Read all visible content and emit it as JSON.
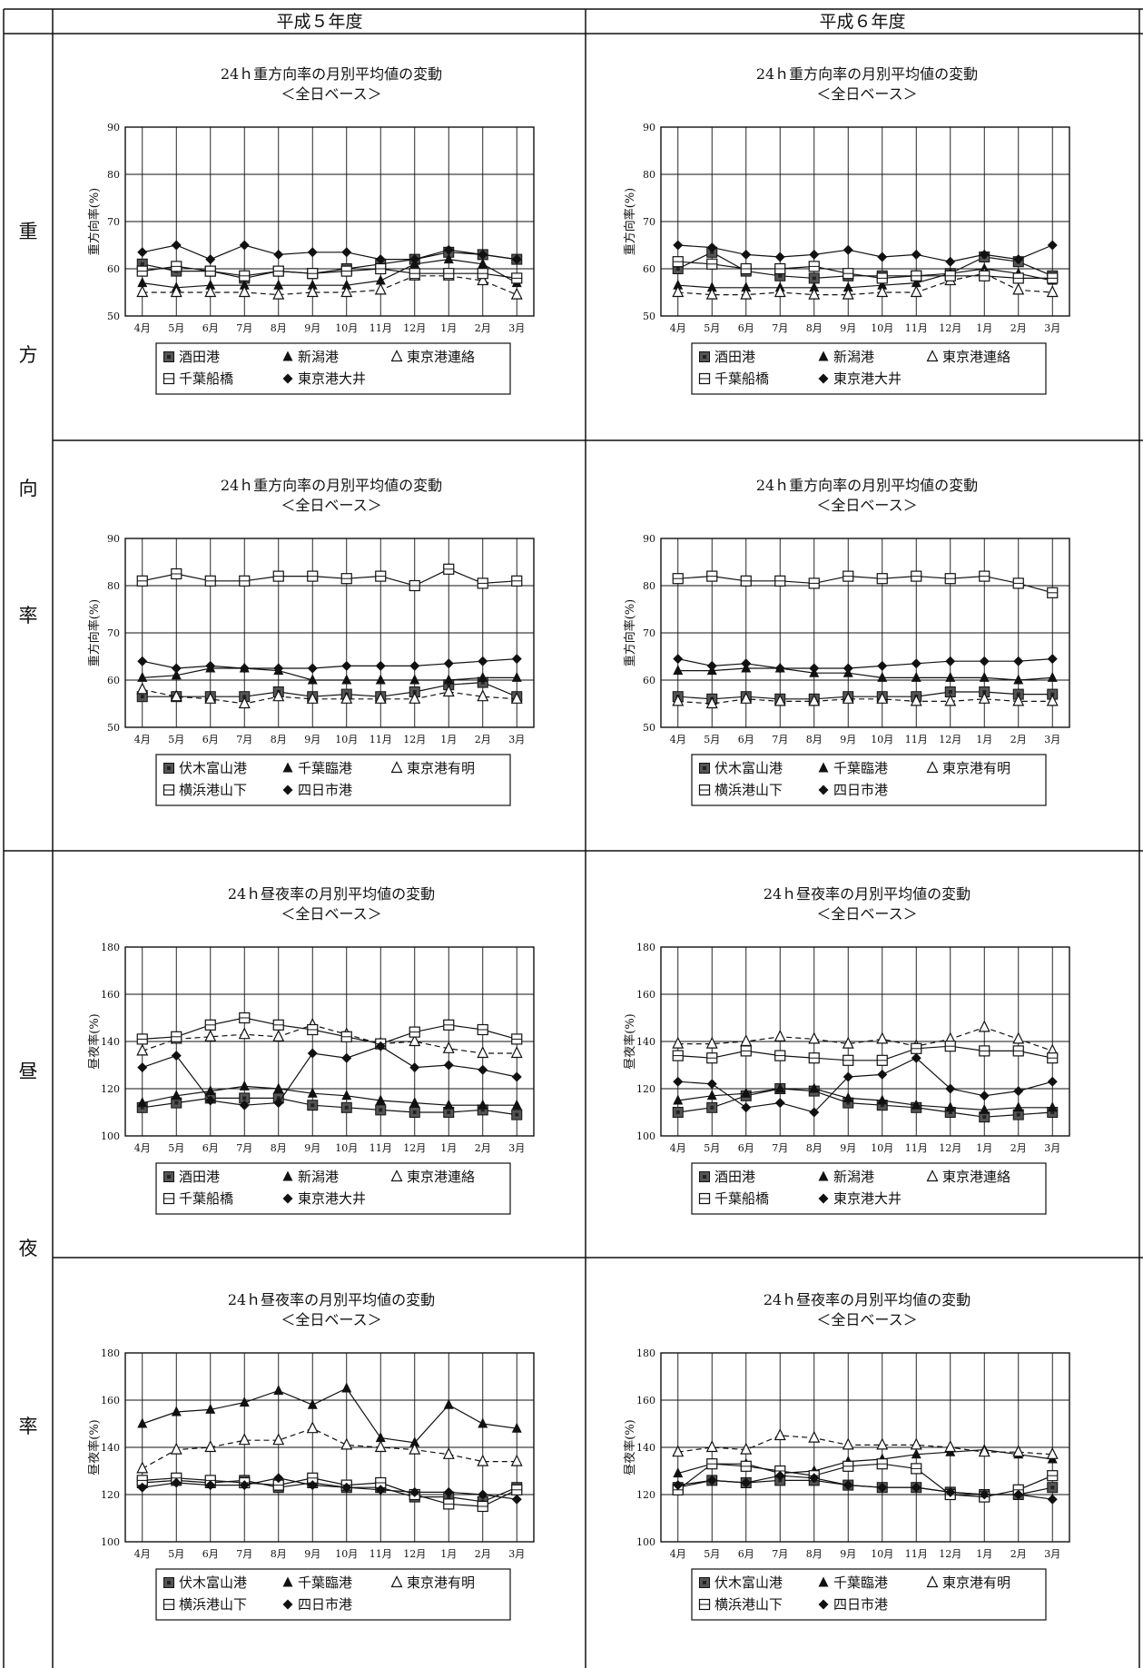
{
  "table": {
    "col_headers": [
      "平成５年度",
      "平成６年度"
    ],
    "row_groups": [
      {
        "label_chars": [
          "重",
          "方",
          "向",
          "率"
        ]
      },
      {
        "label_chars": [
          "昼",
          "夜",
          "率"
        ]
      }
    ]
  },
  "chart_data": [
    {
      "type": "line",
      "title": "24ｈ重方向率の月別平均値の変動",
      "subtitle": "＜全日ベース＞",
      "ylabel": "重方向率(%)",
      "ylim": [
        50,
        90
      ],
      "yticks": [
        50,
        60,
        70,
        80,
        90
      ],
      "grid": true,
      "legend_placement": "bottom",
      "categories": [
        "4月",
        "5月",
        "6月",
        "7月",
        "8月",
        "9月",
        "10月",
        "11月",
        "12月",
        "1月",
        "2月",
        "3月"
      ],
      "series": [
        {
          "name": "酒田港",
          "marker": "square-filled",
          "values": [
            61,
            59.5,
            59.5,
            58,
            59.5,
            59,
            60,
            61,
            62,
            63.5,
            63,
            62
          ]
        },
        {
          "name": "新潟港",
          "marker": "triangle-filled",
          "values": [
            57,
            56,
            56.5,
            56.5,
            56.5,
            56.5,
            56.5,
            57.5,
            61,
            62,
            61,
            57
          ]
        },
        {
          "name": "東京港連絡",
          "marker": "triangle-open",
          "values": [
            55,
            55,
            55,
            55,
            54.5,
            55,
            55,
            55.5,
            58.5,
            58.5,
            57.5,
            54.5
          ]
        },
        {
          "name": "千葉船橋",
          "marker": "square-open",
          "values": [
            59.5,
            60.5,
            59.5,
            58.5,
            59.5,
            59,
            59.5,
            60,
            59,
            59,
            59,
            58
          ]
        },
        {
          "name": "東京港大井",
          "marker": "diamond-filled",
          "values": [
            63.5,
            65,
            62,
            65,
            63,
            63.5,
            63.5,
            62,
            62,
            64,
            63,
            62
          ]
        }
      ]
    },
    {
      "type": "line",
      "title": "24ｈ重方向率の月別平均値の変動",
      "subtitle": "＜全日ベース＞",
      "ylabel": "重方向率(%)",
      "ylim": [
        50,
        90
      ],
      "yticks": [
        50,
        60,
        70,
        80,
        90
      ],
      "grid": true,
      "legend_placement": "bottom",
      "categories": [
        "4月",
        "5月",
        "6月",
        "7月",
        "8月",
        "9月",
        "10月",
        "11月",
        "12月",
        "1月",
        "2月",
        "3月"
      ],
      "series": [
        {
          "name": "酒田港",
          "marker": "square-filled",
          "values": [
            60,
            63.5,
            59.5,
            58.5,
            58,
            58.5,
            58.5,
            58.5,
            59,
            62.5,
            61.5,
            58.5
          ]
        },
        {
          "name": "新潟港",
          "marker": "triangle-filled",
          "values": [
            56.5,
            56,
            56,
            56,
            56,
            56,
            56.5,
            57,
            59,
            60,
            59,
            57.5
          ]
        },
        {
          "name": "東京港連絡",
          "marker": "triangle-open",
          "values": [
            55,
            54.5,
            54.5,
            55,
            54.5,
            54.5,
            55,
            55,
            57.5,
            59,
            55.5,
            55
          ]
        },
        {
          "name": "千葉船橋",
          "marker": "square-open",
          "values": [
            61.5,
            61,
            60,
            60,
            60.5,
            59,
            58,
            58.5,
            58.5,
            58.5,
            58,
            58
          ]
        },
        {
          "name": "東京港大井",
          "marker": "diamond-filled",
          "values": [
            65,
            64.5,
            63,
            62.5,
            63,
            64,
            62.5,
            63,
            61.5,
            63,
            62,
            65
          ]
        }
      ]
    },
    {
      "type": "line",
      "title": "24ｈ重方向率の月別平均値の変動",
      "subtitle": "＜全日ベース＞",
      "ylabel": "重方向率(%)",
      "ylim": [
        50,
        90
      ],
      "yticks": [
        50,
        60,
        70,
        80,
        90
      ],
      "grid": true,
      "legend_placement": "bottom",
      "categories": [
        "4月",
        "5月",
        "6月",
        "7月",
        "8月",
        "9月",
        "10月",
        "11月",
        "12月",
        "1月",
        "2月",
        "3月"
      ],
      "series": [
        {
          "name": "伏木富山港",
          "marker": "square-filled",
          "values": [
            56.5,
            56.5,
            56.5,
            56.5,
            57.5,
            56.5,
            57,
            56.5,
            57.5,
            59,
            59.5,
            56.5
          ]
        },
        {
          "name": "千葉臨港",
          "marker": "triangle-filled",
          "values": [
            60.5,
            61,
            62.5,
            62.5,
            62,
            60,
            60,
            60,
            60,
            60,
            60.5,
            60.5
          ]
        },
        {
          "name": "東京港有明",
          "marker": "triangle-open",
          "values": [
            58,
            56.5,
            56,
            55,
            56.5,
            56,
            56,
            56,
            56,
            57.5,
            56.5,
            56
          ]
        },
        {
          "name": "横浜港山下",
          "marker": "square-open",
          "values": [
            81,
            82.5,
            81,
            81,
            82,
            82,
            81.5,
            82,
            80,
            83.5,
            80.5,
            81
          ]
        },
        {
          "name": "四日市港",
          "marker": "diamond-filled",
          "values": [
            64,
            62.5,
            63,
            62.5,
            62.5,
            62.5,
            63,
            63,
            63,
            63.5,
            64,
            64.5
          ]
        }
      ]
    },
    {
      "type": "line",
      "title": "24ｈ重方向率の月別平均値の変動",
      "subtitle": "＜全日ベース＞",
      "ylabel": "重方向率(%)",
      "ylim": [
        50,
        90
      ],
      "yticks": [
        50,
        60,
        70,
        80,
        90
      ],
      "grid": true,
      "legend_placement": "bottom",
      "categories": [
        "4月",
        "5月",
        "6月",
        "7月",
        "8月",
        "9月",
        "10月",
        "11月",
        "12月",
        "1月",
        "2月",
        "3月"
      ],
      "series": [
        {
          "name": "伏木富山港",
          "marker": "square-filled",
          "values": [
            56.5,
            56,
            56.5,
            56,
            56,
            56.5,
            56.5,
            56.5,
            57.5,
            57.5,
            57,
            57
          ]
        },
        {
          "name": "千葉臨港",
          "marker": "triangle-filled",
          "values": [
            62,
            62,
            62.5,
            62.5,
            61.5,
            61.5,
            60.5,
            60.5,
            60.5,
            60.5,
            60,
            60.5
          ]
        },
        {
          "name": "東京港有明",
          "marker": "triangle-open",
          "values": [
            55.5,
            55,
            56,
            55.5,
            55.5,
            56,
            56,
            55.5,
            55.5,
            56,
            55.5,
            55.5
          ]
        },
        {
          "name": "横浜港山下",
          "marker": "square-open",
          "values": [
            81.5,
            82,
            81,
            81,
            80.5,
            82,
            81.5,
            82,
            81.5,
            82,
            80.5,
            78.5
          ]
        },
        {
          "name": "四日市港",
          "marker": "diamond-filled",
          "values": [
            64.5,
            63,
            63.5,
            62.5,
            62.5,
            62.5,
            63,
            63.5,
            64,
            64,
            64,
            64.5
          ]
        }
      ]
    },
    {
      "type": "line",
      "title": "24ｈ昼夜率の月別平均値の変動",
      "subtitle": "＜全日ベース＞",
      "ylabel": "昼夜率(%)",
      "ylim": [
        100,
        180
      ],
      "yticks": [
        100,
        120,
        140,
        160,
        180
      ],
      "grid": true,
      "legend_placement": "bottom",
      "categories": [
        "4月",
        "5月",
        "6月",
        "7月",
        "8月",
        "9月",
        "10月",
        "11月",
        "12月",
        "1月",
        "2月",
        "3月"
      ],
      "series": [
        {
          "name": "酒田港",
          "marker": "square-filled",
          "values": [
            112,
            114,
            116,
            116,
            116,
            113,
            112,
            111,
            110,
            110,
            111,
            109
          ]
        },
        {
          "name": "新潟港",
          "marker": "triangle-filled",
          "values": [
            114,
            117,
            119,
            121,
            120,
            118,
            117,
            115,
            114,
            113,
            113,
            113
          ]
        },
        {
          "name": "東京港連絡",
          "marker": "triangle-open",
          "values": [
            136,
            141,
            142,
            143,
            142,
            147,
            143,
            139,
            140,
            137,
            135,
            135
          ]
        },
        {
          "name": "千葉船橋",
          "marker": "square-open",
          "values": [
            141,
            142,
            147,
            150,
            147,
            145,
            142,
            139,
            144,
            147,
            145,
            141
          ]
        },
        {
          "name": "東京港大井",
          "marker": "diamond-filled",
          "values": [
            129,
            134,
            115,
            113,
            114,
            135,
            133,
            138,
            129,
            130,
            128,
            125
          ]
        }
      ]
    },
    {
      "type": "line",
      "title": "24ｈ昼夜率の月別平均値の変動",
      "subtitle": "＜全日ベース＞",
      "ylabel": "昼夜率(%)",
      "ylim": [
        100,
        180
      ],
      "yticks": [
        100,
        120,
        140,
        160,
        180
      ],
      "grid": true,
      "legend_placement": "bottom",
      "categories": [
        "4月",
        "5月",
        "6月",
        "7月",
        "8月",
        "9月",
        "10月",
        "11月",
        "12月",
        "1月",
        "2月",
        "3月"
      ],
      "series": [
        {
          "name": "酒田港",
          "marker": "square-filled",
          "values": [
            110,
            112,
            117,
            120,
            119,
            114,
            113,
            112,
            110,
            108,
            109,
            110
          ]
        },
        {
          "name": "新潟港",
          "marker": "triangle-filled",
          "values": [
            115,
            117,
            118,
            120,
            120,
            116,
            115,
            113,
            112,
            111,
            112,
            112
          ]
        },
        {
          "name": "東京港連絡",
          "marker": "triangle-open",
          "values": [
            139,
            139,
            140,
            142,
            141,
            139,
            141,
            138,
            141,
            146,
            141,
            136
          ]
        },
        {
          "name": "千葉船橋",
          "marker": "square-open",
          "values": [
            134,
            133,
            136,
            134,
            133,
            132,
            132,
            137,
            138,
            136,
            136,
            133
          ]
        },
        {
          "name": "東京港大井",
          "marker": "diamond-filled",
          "values": [
            123,
            122,
            112,
            114,
            110,
            125,
            126,
            133,
            120,
            117,
            119,
            123
          ]
        }
      ]
    },
    {
      "type": "line",
      "title": "24ｈ昼夜率の月別平均値の変動",
      "subtitle": "＜全日ベース＞",
      "ylabel": "昼夜率(%)",
      "ylim": [
        100,
        180
      ],
      "yticks": [
        100,
        120,
        140,
        160,
        180
      ],
      "grid": true,
      "legend_placement": "bottom",
      "categories": [
        "4月",
        "5月",
        "6月",
        "7月",
        "8月",
        "9月",
        "10月",
        "11月",
        "12月",
        "1月",
        "2月",
        "3月"
      ],
      "series": [
        {
          "name": "伏木富山港",
          "marker": "square-filled",
          "values": [
            125,
            126,
            125,
            126,
            123,
            125,
            123,
            123,
            119,
            119,
            117,
            123
          ]
        },
        {
          "name": "千葉臨港",
          "marker": "triangle-filled",
          "values": [
            150,
            155,
            156,
            159,
            164,
            158,
            165,
            144,
            142,
            158,
            150,
            148
          ]
        },
        {
          "name": "東京港有明",
          "marker": "triangle-open",
          "values": [
            131,
            139,
            140,
            143,
            143,
            148,
            141,
            140,
            139,
            137,
            134,
            134
          ]
        },
        {
          "name": "横浜港山下",
          "marker": "square-open",
          "values": [
            126,
            127,
            126,
            125,
            124,
            127,
            124,
            125,
            120,
            116,
            115,
            122
          ]
        },
        {
          "name": "四日市港",
          "marker": "diamond-filled",
          "values": [
            123,
            125,
            124,
            124,
            127,
            124,
            123,
            122,
            121,
            121,
            120,
            118
          ]
        }
      ]
    },
    {
      "type": "line",
      "title": "24ｈ昼夜率の月別平均値の変動",
      "subtitle": "＜全日ベース＞",
      "ylabel": "昼夜率(%)",
      "ylim": [
        100,
        180
      ],
      "yticks": [
        100,
        120,
        140,
        160,
        180
      ],
      "grid": true,
      "legend_placement": "bottom",
      "categories": [
        "4月",
        "5月",
        "6月",
        "7月",
        "8月",
        "9月",
        "10月",
        "11月",
        "12月",
        "1月",
        "2月",
        "3月"
      ],
      "series": [
        {
          "name": "伏木富山港",
          "marker": "square-filled",
          "values": [
            123,
            126,
            125,
            126,
            126,
            124,
            123,
            123,
            121,
            120,
            120,
            123
          ]
        },
        {
          "name": "千葉臨港",
          "marker": "triangle-filled",
          "values": [
            129,
            133,
            133,
            129,
            130,
            134,
            135,
            137,
            138,
            139,
            137,
            135
          ]
        },
        {
          "name": "東京港有明",
          "marker": "triangle-open",
          "values": [
            138,
            140,
            139,
            145,
            144,
            141,
            141,
            141,
            140,
            138,
            138,
            137
          ]
        },
        {
          "name": "横浜港山下",
          "marker": "square-open",
          "values": [
            122,
            133,
            132,
            130,
            128,
            132,
            133,
            131,
            120,
            119,
            122,
            128
          ]
        },
        {
          "name": "四日市港",
          "marker": "diamond-filled",
          "values": [
            124,
            126,
            125,
            128,
            127,
            124,
            123,
            123,
            121,
            120,
            120,
            118
          ]
        }
      ]
    }
  ]
}
